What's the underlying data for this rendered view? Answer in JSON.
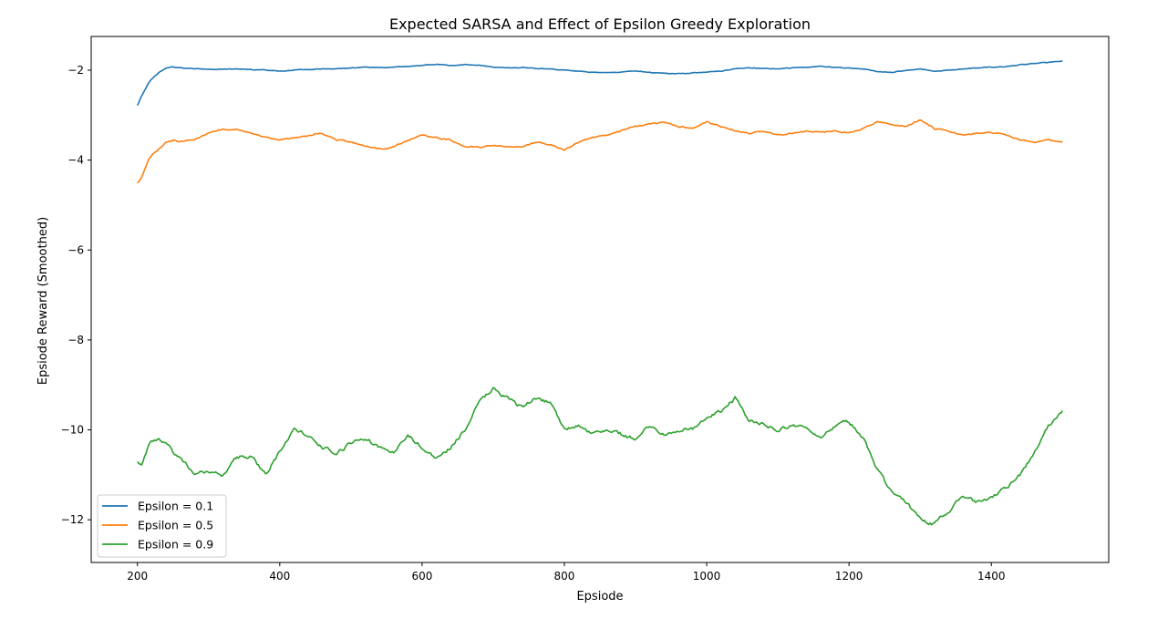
{
  "chart_data": {
    "type": "line",
    "title": "Expected SARSA and Effect of Epsilon Greedy Exploration",
    "xlabel": "Epsiode",
    "ylabel": "Epsiode Reward (Smoothed)",
    "xlim": [
      135,
      1565
    ],
    "ylim": [
      -12.95,
      -1.25
    ],
    "xticks": [
      200,
      400,
      600,
      800,
      1000,
      1200,
      1400
    ],
    "yticks": [
      -12,
      -10,
      -8,
      -6,
      -4,
      -2
    ],
    "grid": false,
    "legend_position": "lower-left",
    "series": [
      {
        "name": "Epsilon = 0.1",
        "color": "#1f77b4",
        "x": [
          200,
          205,
          210,
          215,
          220,
          230,
          240,
          250,
          260,
          280,
          300,
          320,
          340,
          360,
          380,
          400,
          420,
          440,
          460,
          480,
          500,
          520,
          540,
          560,
          580,
          600,
          620,
          640,
          660,
          680,
          700,
          720,
          740,
          760,
          780,
          800,
          820,
          840,
          860,
          880,
          900,
          920,
          940,
          960,
          980,
          1000,
          1020,
          1040,
          1060,
          1080,
          1100,
          1120,
          1140,
          1160,
          1180,
          1200,
          1220,
          1240,
          1260,
          1280,
          1300,
          1320,
          1340,
          1360,
          1380,
          1400,
          1420,
          1440,
          1460,
          1480,
          1500
        ],
        "values": [
          -2.78,
          -2.6,
          -2.45,
          -2.3,
          -2.2,
          -2.05,
          -1.95,
          -1.93,
          -1.95,
          -1.97,
          -1.98,
          -1.98,
          -1.97,
          -1.99,
          -2.0,
          -2.02,
          -2.0,
          -1.98,
          -1.97,
          -1.97,
          -1.95,
          -1.93,
          -1.94,
          -1.93,
          -1.92,
          -1.9,
          -1.87,
          -1.9,
          -1.88,
          -1.89,
          -1.93,
          -1.95,
          -1.94,
          -1.96,
          -1.97,
          -2.0,
          -2.02,
          -2.05,
          -2.05,
          -2.04,
          -2.02,
          -2.05,
          -2.07,
          -2.08,
          -2.06,
          -2.04,
          -2.02,
          -1.96,
          -1.95,
          -1.96,
          -1.97,
          -1.95,
          -1.93,
          -1.91,
          -1.94,
          -1.95,
          -1.97,
          -2.03,
          -2.05,
          -2.0,
          -1.98,
          -2.02,
          -2.0,
          -1.97,
          -1.95,
          -1.93,
          -1.92,
          -1.88,
          -1.85,
          -1.83,
          -1.8
        ]
      },
      {
        "name": "Epsilon = 0.5",
        "color": "#ff7f0e",
        "x": [
          200,
          205,
          210,
          215,
          220,
          230,
          240,
          250,
          260,
          280,
          300,
          320,
          340,
          360,
          380,
          400,
          420,
          440,
          460,
          480,
          500,
          520,
          540,
          560,
          580,
          600,
          620,
          640,
          660,
          680,
          700,
          720,
          740,
          760,
          780,
          800,
          820,
          840,
          860,
          880,
          900,
          920,
          940,
          960,
          980,
          1000,
          1020,
          1040,
          1060,
          1080,
          1100,
          1120,
          1140,
          1160,
          1180,
          1200,
          1220,
          1240,
          1260,
          1280,
          1300,
          1320,
          1340,
          1360,
          1380,
          1400,
          1420,
          1440,
          1460,
          1480,
          1500
        ],
        "values": [
          -4.5,
          -4.4,
          -4.2,
          -4.0,
          -3.9,
          -3.75,
          -3.6,
          -3.55,
          -3.6,
          -3.55,
          -3.4,
          -3.3,
          -3.33,
          -3.4,
          -3.5,
          -3.55,
          -3.5,
          -3.45,
          -3.4,
          -3.55,
          -3.6,
          -3.7,
          -3.75,
          -3.72,
          -3.55,
          -3.45,
          -3.5,
          -3.55,
          -3.7,
          -3.72,
          -3.67,
          -3.7,
          -3.7,
          -3.6,
          -3.65,
          -3.78,
          -3.6,
          -3.5,
          -3.45,
          -3.35,
          -3.25,
          -3.2,
          -3.15,
          -3.25,
          -3.3,
          -3.15,
          -3.25,
          -3.35,
          -3.4,
          -3.35,
          -3.45,
          -3.4,
          -3.35,
          -3.38,
          -3.35,
          -3.4,
          -3.3,
          -3.15,
          -3.2,
          -3.25,
          -3.1,
          -3.3,
          -3.35,
          -3.45,
          -3.4,
          -3.38,
          -3.45,
          -3.55,
          -3.6,
          -3.55,
          -3.6
        ]
      },
      {
        "name": "Epsilon = 0.9",
        "color": "#2ca02c",
        "x": [
          200,
          205,
          210,
          215,
          220,
          230,
          240,
          250,
          260,
          280,
          300,
          320,
          340,
          360,
          380,
          400,
          420,
          440,
          460,
          480,
          500,
          520,
          540,
          560,
          580,
          600,
          620,
          640,
          660,
          680,
          700,
          720,
          740,
          760,
          780,
          800,
          820,
          840,
          860,
          880,
          900,
          920,
          940,
          960,
          980,
          1000,
          1020,
          1040,
          1060,
          1080,
          1100,
          1120,
          1140,
          1160,
          1180,
          1200,
          1220,
          1240,
          1260,
          1280,
          1300,
          1320,
          1340,
          1360,
          1380,
          1400,
          1420,
          1440,
          1460,
          1480,
          1500
        ],
        "values": [
          -10.7,
          -10.8,
          -10.6,
          -10.4,
          -10.3,
          -10.2,
          -10.3,
          -10.5,
          -10.6,
          -11.0,
          -10.9,
          -11.0,
          -10.6,
          -10.6,
          -11.0,
          -10.5,
          -10.0,
          -10.1,
          -10.4,
          -10.5,
          -10.3,
          -10.2,
          -10.4,
          -10.5,
          -10.1,
          -10.4,
          -10.6,
          -10.4,
          -10.0,
          -9.4,
          -9.1,
          -9.3,
          -9.5,
          -9.3,
          -9.4,
          -10.0,
          -9.9,
          -10.1,
          -10.0,
          -10.1,
          -10.2,
          -9.9,
          -10.1,
          -10.0,
          -10.0,
          -9.7,
          -9.6,
          -9.3,
          -9.8,
          -9.9,
          -10.0,
          -9.9,
          -10.0,
          -10.2,
          -9.9,
          -9.8,
          -10.2,
          -10.9,
          -11.4,
          -11.6,
          -12.0,
          -12.1,
          -11.8,
          -11.5,
          -11.6,
          -11.5,
          -11.3,
          -11.0,
          -10.5,
          -9.9,
          -9.6
        ]
      }
    ]
  }
}
